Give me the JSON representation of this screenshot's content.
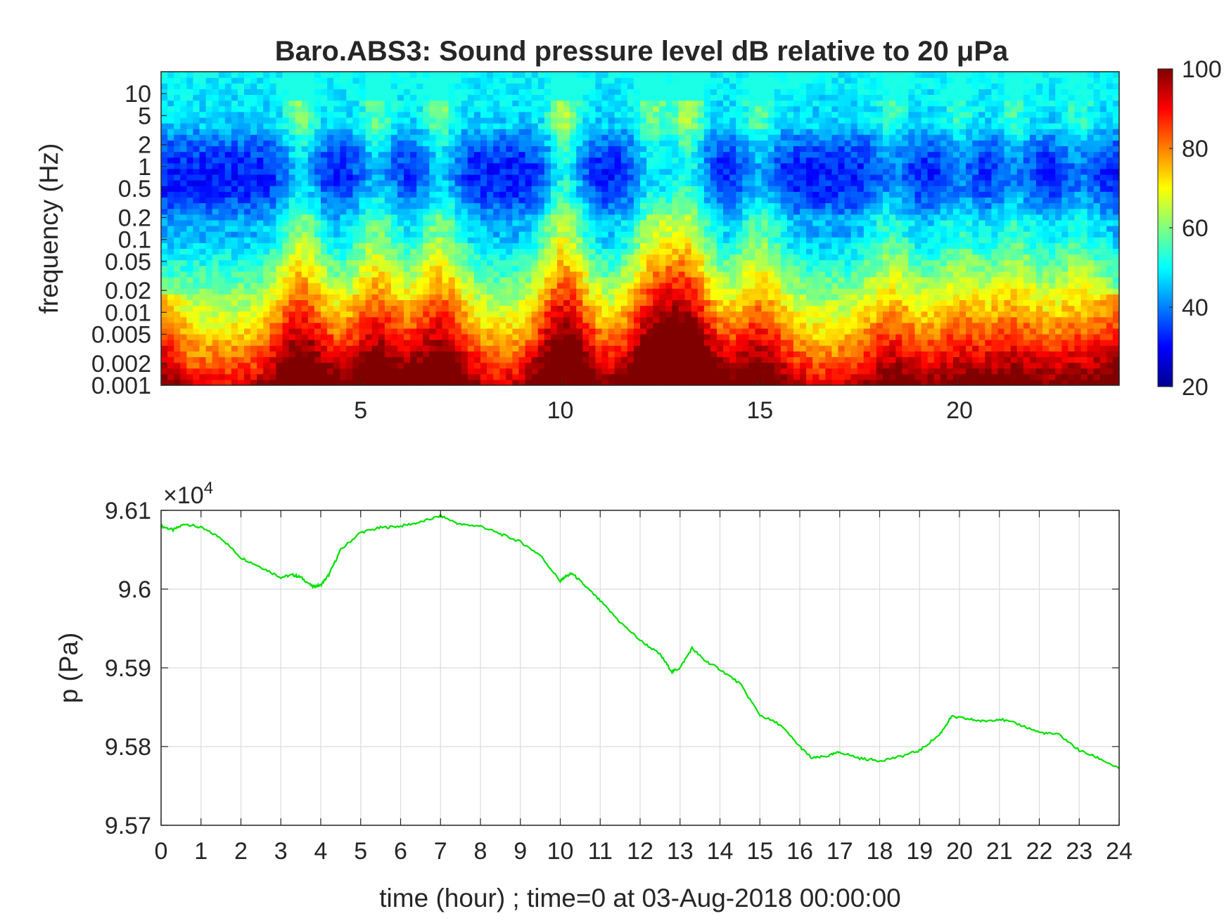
{
  "chart_data": [
    {
      "type": "heatmap",
      "title": "Baro.ABS3: Sound pressure level dB relative to 20 μPa",
      "ylabel": "frequency (Hz)",
      "xlabel": "",
      "xlim": [
        0,
        24
      ],
      "ylim": [
        0.001,
        20
      ],
      "yscale": "log",
      "xticks": [
        "5",
        "10",
        "15",
        "20"
      ],
      "yticks": [
        "0.001",
        "0.002",
        "0.005",
        "0.01",
        "0.02",
        "0.05",
        "0.1",
        "0.2",
        "0.5",
        "1",
        "2",
        "5",
        "10"
      ],
      "colorbar": {
        "range": [
          20,
          100
        ],
        "ticks": [
          "20",
          "40",
          "60",
          "80",
          "100"
        ],
        "colormap": "jet"
      },
      "bursts": [
        {
          "t": 3.5,
          "intensity": 0.8
        },
        {
          "t": 5.4,
          "intensity": 0.7
        },
        {
          "t": 7.0,
          "intensity": 0.75
        },
        {
          "t": 10.1,
          "intensity": 1.0
        },
        {
          "t": 12.3,
          "intensity": 0.8
        },
        {
          "t": 13.2,
          "intensity": 1.0
        },
        {
          "t": 15.0,
          "intensity": 0.6
        },
        {
          "t": 18.3,
          "intensity": 0.45
        },
        {
          "t": 20.0,
          "intensity": 0.4
        },
        {
          "t": 21.4,
          "intensity": 0.45
        },
        {
          "t": 23.0,
          "intensity": 0.4
        }
      ]
    },
    {
      "type": "line",
      "xlabel": "time (hour) ; time=0 at 03-Aug-2018 00:00:00",
      "ylabel": "p (Pa)",
      "exponent_label": "×10",
      "exponent_power": "4",
      "xlim": [
        0,
        24
      ],
      "ylim": [
        95700,
        96100
      ],
      "xticks": [
        "0",
        "1",
        "2",
        "3",
        "4",
        "5",
        "6",
        "7",
        "8",
        "9",
        "10",
        "11",
        "12",
        "13",
        "14",
        "15",
        "16",
        "17",
        "18",
        "19",
        "20",
        "21",
        "22",
        "23",
        "24"
      ],
      "yticks": [
        "9.57",
        "9.58",
        "9.59",
        "9.6",
        "9.61"
      ],
      "grid": true,
      "line_color": "#00e000",
      "series": [
        {
          "x": [
            0,
            0.3,
            0.6,
            1.0,
            1.5,
            2.0,
            2.5,
            3.0,
            3.3,
            3.5,
            3.8,
            4.0,
            4.2,
            4.5,
            5.0,
            5.5,
            6.0,
            6.5,
            7.0,
            7.5,
            8.0,
            8.5,
            9.0,
            9.5,
            10.0,
            10.1,
            10.3,
            10.6,
            11.0,
            11.5,
            12.0,
            12.5,
            12.8,
            13.0,
            13.3,
            13.6,
            14.0,
            14.5,
            15.0,
            15.5,
            16.0,
            16.3,
            16.7,
            17.0,
            17.5,
            18.0,
            18.5,
            19.0,
            19.5,
            19.8,
            20.2,
            20.6,
            21.0,
            21.5,
            22.0,
            22.5,
            23.0,
            23.5,
            24.0
          ],
          "y": [
            96080,
            96075,
            96083,
            96078,
            96065,
            96040,
            96028,
            96015,
            96018,
            96015,
            96003,
            96005,
            96018,
            96050,
            96072,
            96078,
            96080,
            96085,
            96093,
            96082,
            96080,
            96070,
            96060,
            96043,
            96010,
            96015,
            96020,
            96005,
            95985,
            95958,
            95935,
            95917,
            95895,
            95900,
            95925,
            95910,
            95898,
            95880,
            95840,
            95828,
            95800,
            95785,
            95788,
            95793,
            95785,
            95782,
            95787,
            95795,
            95815,
            95838,
            95835,
            95832,
            95835,
            95828,
            95818,
            95815,
            95795,
            95785,
            95772
          ]
        }
      ]
    }
  ]
}
